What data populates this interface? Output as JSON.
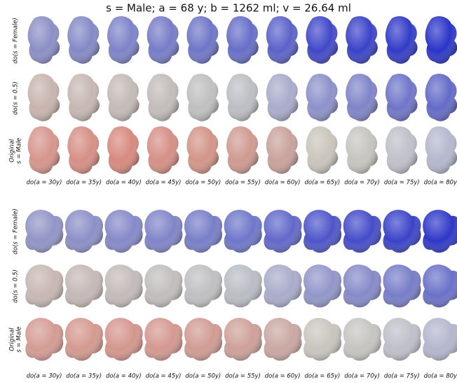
{
  "title": "s = Male; a = 68 y; b = 1262 ml; v = 26.64 ml",
  "panels": [
    {
      "rows": [
        {
          "label": [
            "do(s = Female)"
          ],
          "colors": [
            "#8a8fc6",
            "#8489c6",
            "#7d83c8",
            "#767cc8",
            "#6f75c8",
            "#676ec8",
            "#5a62c9",
            "#4048c9",
            "#3a42c8",
            "#323bc8",
            "#2b34c8"
          ]
        },
        {
          "label": [
            "do(s = 0.5)"
          ],
          "colors": [
            "#c8b4ae",
            "#c6b7b2",
            "#c4bab7",
            "#c2bcba",
            "#c0bfc0",
            "#bdbec3",
            "#a9abcb",
            "#8c91c9",
            "#7f84c8",
            "#6f75c8",
            "#636ac8"
          ]
        },
        {
          "label": [
            "Original",
            "s = Male"
          ],
          "colors": [
            "#d5958b",
            "#d68f85",
            "#d8897e",
            "#d58f86",
            "#d39488",
            "#cf9a90",
            "#c9a29c",
            "#c9c5bb",
            "#c6c4bf",
            "#bfc0c8",
            "#b5b7cd"
          ]
        }
      ],
      "columns": [
        "do(a = 30y)",
        "do(a = 35y)",
        "do(a = 40y)",
        "do(a = 45y)",
        "do(a = 50y)",
        "do(a = 55y)",
        "do(a = 60y)",
        "do(a = 65y)",
        "do(a = 70y)",
        "do(a = 75y)",
        "do(a = 80y)"
      ]
    },
    {
      "rows": [
        {
          "label": [
            "do(s = Female)"
          ],
          "colors": [
            "#9194c6",
            "#8b8fc7",
            "#8589c8",
            "#7f84c8",
            "#787ec8",
            "#6f76c9",
            "#6168c9",
            "#4d55c9",
            "#444cc8",
            "#3a43c8",
            "#2e37c8"
          ]
        },
        {
          "label": [
            "do(s = 0.5)"
          ],
          "colors": [
            "#c7b7b2",
            "#c5b8b5",
            "#c3bbb9",
            "#c1bdbd",
            "#bfbfc2",
            "#babcc5",
            "#a9abca",
            "#9196c9",
            "#858ac8",
            "#777dc8",
            "#6a71c8"
          ]
        },
        {
          "label": [
            "Original",
            "s = Male"
          ],
          "colors": [
            "#d49b92",
            "#d4998f",
            "#d4968c",
            "#d3988f",
            "#d19b93",
            "#cea099",
            "#caa7a2",
            "#c8c5bd",
            "#c5c4c1",
            "#bebfc8",
            "#b4b6cd"
          ]
        }
      ],
      "columns": [
        "do(a = 30y)",
        "do(a = 35y)",
        "do(a = 40y)",
        "do(a = 45y)",
        "do(a = 50y)",
        "do(a = 55y)",
        "do(a = 60y)",
        "do(a = 65y)",
        "do(a = 70y)",
        "do(a = 75y)",
        "do(a = 80y)"
      ]
    }
  ]
}
